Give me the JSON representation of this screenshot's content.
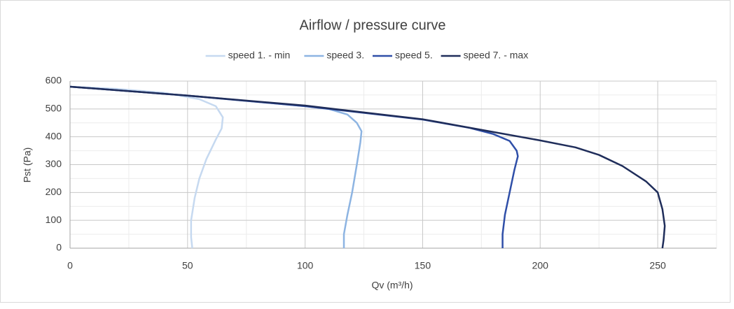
{
  "chart_data": {
    "type": "line",
    "title": "Airflow / pressure curve",
    "xlabel": "Qv (m³/h)",
    "ylabel": "Pst (Pa)",
    "xlim": [
      0,
      275
    ],
    "xticks": [
      0,
      50,
      100,
      150,
      200,
      250
    ],
    "ylim": [
      0,
      600
    ],
    "yticks": [
      0,
      100,
      200,
      300,
      400,
      500,
      600
    ],
    "grid": true,
    "minor_grid": true,
    "legend": "top",
    "series": [
      {
        "name": "speed 1. - min",
        "color": "#c6d9f0",
        "x": [
          0,
          20,
          40,
          55,
          62,
          65,
          64.5,
          62,
          58,
          55,
          53,
          51.5,
          51.5,
          52
        ],
        "values": [
          580,
          572,
          558,
          535,
          510,
          470,
          430,
          390,
          320,
          250,
          180,
          100,
          40,
          0
        ]
      },
      {
        "name": "speed 3.",
        "color": "#8db4e2",
        "x": [
          0,
          50,
          100,
          110,
          118,
          122,
          124,
          123.5,
          122,
          120,
          118,
          116.5,
          116.5
        ],
        "values": [
          580,
          548,
          510,
          500,
          480,
          450,
          420,
          380,
          300,
          200,
          120,
          50,
          0
        ]
      },
      {
        "name": "speed 5.",
        "color": "#2f4fa8",
        "x": [
          0,
          50,
          100,
          150,
          170,
          180,
          187,
          190,
          190.5,
          189,
          187,
          185,
          184,
          184
        ],
        "values": [
          580,
          548,
          510,
          462,
          432,
          410,
          385,
          350,
          330,
          280,
          200,
          120,
          50,
          0
        ]
      },
      {
        "name": "speed 7. - max",
        "color": "#1f2d5a",
        "x": [
          0,
          50,
          100,
          150,
          175,
          200,
          215,
          225,
          235,
          245,
          250,
          252,
          253,
          252.5,
          252
        ],
        "values": [
          580,
          548,
          512,
          463,
          425,
          387,
          362,
          335,
          295,
          240,
          200,
          140,
          80,
          30,
          0
        ]
      }
    ]
  }
}
